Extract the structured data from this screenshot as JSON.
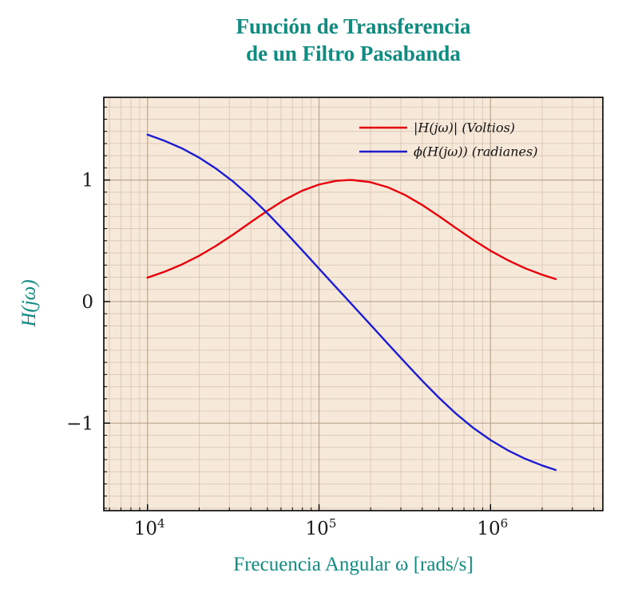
{
  "figure": {
    "title_line1": "Función de Transferencia",
    "title_line2": "de un Filtro Pasabanda",
    "xlabel": "Frecuencia Angular ω [rads/s]",
    "ylabel": "H(jω)"
  },
  "colors": {
    "accent": "#0f8b80",
    "magnitude_line": "#e8000b",
    "phase_line": "#1c1cd0",
    "plot_background": "#f7e9da",
    "grid_minor": "#ddcab7",
    "grid_major": "#bda68e",
    "axis_frame": "#000000",
    "tick_label": "#1a1a1a",
    "legend_text": "#111111"
  },
  "chart_data": {
    "type": "line",
    "title": "Función de Transferencia de un Filtro Pasabanda",
    "xlabel": "Frecuencia Angular ω [rads/s]",
    "ylabel": "H(jω)",
    "x_scale": "log",
    "grid": true,
    "legend_position": "top-right",
    "xlim_log10": [
      3.745,
      6.655
    ],
    "ylim": [
      -1.72,
      1.68
    ],
    "xticks": [
      {
        "value": 10000,
        "base": "10",
        "exponent": "4"
      },
      {
        "value": 100000,
        "base": "10",
        "exponent": "5"
      },
      {
        "value": 1000000,
        "base": "10",
        "exponent": "6"
      }
    ],
    "yticks": [
      {
        "value": 1,
        "label": "1"
      },
      {
        "value": 0,
        "label": "0"
      },
      {
        "value": -1,
        "label": "−1"
      }
    ],
    "x": [
      10000,
      12589,
      15849,
      19953,
      25119,
      31623,
      39811,
      50119,
      63096,
      79433,
      100000,
      125893,
      150000,
      158489,
      199526,
      251189,
      316228,
      398107,
      501187,
      630957,
      794328,
      1000000,
      1258925,
      1584893,
      1995262,
      2398833
    ],
    "series": [
      {
        "name": "magnitude",
        "legend_label": "|H(jω)| (Voltios)",
        "color_key": "magnitude_line",
        "values": [
          0.197,
          0.246,
          0.305,
          0.376,
          0.459,
          0.552,
          0.651,
          0.748,
          0.838,
          0.911,
          0.963,
          0.993,
          1.0,
          0.999,
          0.982,
          0.941,
          0.878,
          0.796,
          0.702,
          0.603,
          0.507,
          0.418,
          0.341,
          0.275,
          0.221,
          0.185
        ]
      },
      {
        "name": "phase",
        "legend_label": "ϕ(H(jω)) (radianes)",
        "color_key": "phase_line",
        "values": [
          1.373,
          1.322,
          1.261,
          1.185,
          1.093,
          0.986,
          0.862,
          0.725,
          0.578,
          0.425,
          0.271,
          0.117,
          0.0,
          -0.037,
          -0.19,
          -0.345,
          -0.498,
          -0.649,
          -0.792,
          -0.924,
          -1.04,
          -1.139,
          -1.223,
          -1.292,
          -1.348,
          -1.385
        ]
      }
    ]
  }
}
